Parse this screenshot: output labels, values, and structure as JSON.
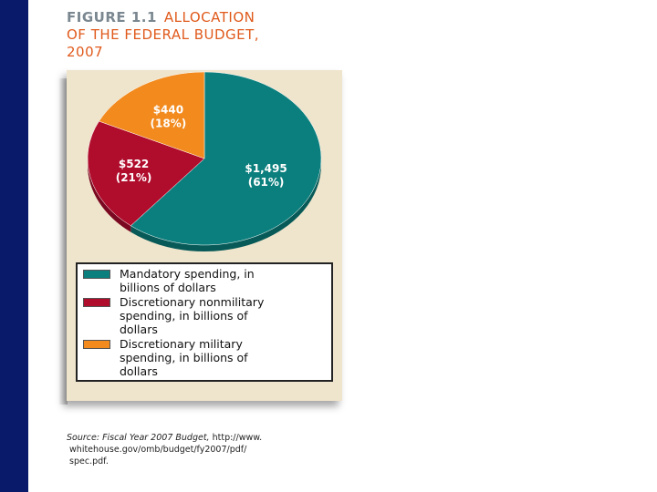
{
  "colors": {
    "side_bar": "#0a1a6b",
    "title_accent": "#e05a1c",
    "title_number": "#7a8790",
    "panel_bg": "#efe4cc",
    "mandatory": "#0b7f7d",
    "mandatory_dark": "#075a58",
    "nonmilitary": "#b00c2c",
    "nonmilitary_dark": "#7a0820",
    "military": "#f28a1d",
    "military_dark": "#b8620f"
  },
  "figure": {
    "number": "FIGURE 1.1",
    "title_line1": "ALLOCATION",
    "title_line2": "OF THE FEDERAL BUDGET,",
    "title_line3": "2007"
  },
  "chart_data": {
    "type": "pie",
    "title": "ALLOCATION OF THE FEDERAL BUDGET, 2007",
    "unit": "billions of dollars",
    "slices": [
      {
        "label": "Mandatory spending, in billions of dollars",
        "value": 1495,
        "value_text": "$1,495",
        "percent": 61,
        "percent_text": "(61%)",
        "color_key": "mandatory"
      },
      {
        "label": "Discretionary nonmilitary spending, in billions of dollars",
        "value": 522,
        "value_text": "$522",
        "percent": 21,
        "percent_text": "(21%)",
        "color_key": "nonmilitary"
      },
      {
        "label": "Discretionary military spending, in billions of dollars",
        "value": 440,
        "value_text": "$440",
        "percent": 18,
        "percent_text": "(18%)",
        "color_key": "military"
      }
    ],
    "legend": {
      "placement": "bottom",
      "items": [
        {
          "line1": "Mandatory spending, in",
          "line2": "billions of dollars",
          "line3": ""
        },
        {
          "line1": "Discretionary nonmilitary",
          "line2": "spending, in billions of",
          "line3": "dollars"
        },
        {
          "line1": "Discretionary military",
          "line2": "spending, in billions of",
          "line3": "dollars"
        }
      ]
    }
  },
  "source": {
    "label": "Source:",
    "name": "Fiscal Year 2007 Budget,",
    "line1_rest": "http://www.",
    "line2": "whitehouse.gov/omb/budget/fy2007/pdf/",
    "line3": "spec.pdf."
  }
}
